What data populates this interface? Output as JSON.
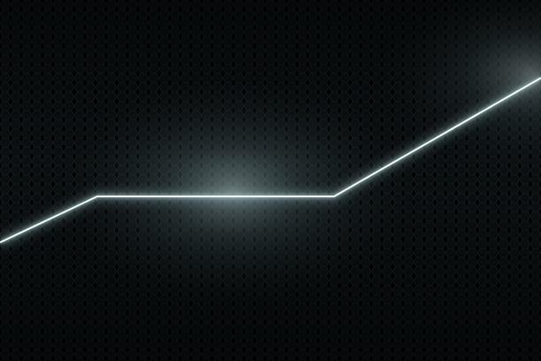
{
  "scene": {
    "colors": {
      "background": "#07090a",
      "hex_fill": "#0d1214",
      "hex_edge": "#1b2326",
      "glow": "#c8e4e6",
      "line": "#cfeef0",
      "line_core": "#f2ffff"
    }
  }
}
